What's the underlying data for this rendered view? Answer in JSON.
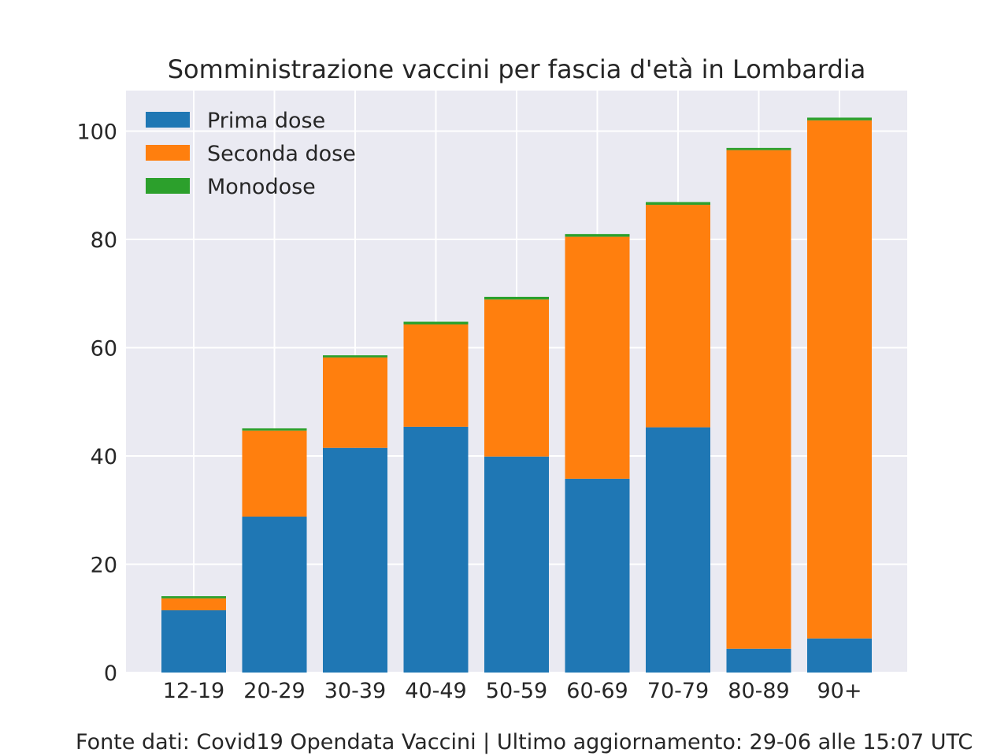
{
  "chart_data": {
    "type": "bar",
    "stacked": true,
    "title": "Somministrazione vaccini per fascia d'età in Lombardia",
    "xlabel": "",
    "ylabel": "",
    "categories": [
      "12-19",
      "20-29",
      "30-39",
      "40-49",
      "50-59",
      "60-69",
      "70-79",
      "80-89",
      "90+"
    ],
    "series": [
      {
        "name": "Prima dose",
        "color": "#1f77b4",
        "values": [
          11.5,
          28.8,
          41.5,
          45.4,
          39.9,
          35.8,
          45.3,
          4.4,
          6.3
        ]
      },
      {
        "name": "Seconda dose",
        "color": "#ff7f0e",
        "values": [
          2.2,
          15.9,
          16.7,
          18.9,
          29.0,
          44.7,
          41.1,
          92.1,
          95.7
        ]
      },
      {
        "name": "Monodose",
        "color": "#2ca02c",
        "values": [
          0.4,
          0.4,
          0.4,
          0.5,
          0.5,
          0.5,
          0.5,
          0.4,
          0.5
        ]
      }
    ],
    "ylim": [
      0,
      107.5
    ],
    "yticks": [
      0,
      20,
      40,
      60,
      80,
      100
    ],
    "grid": true,
    "legend_position": "top-left",
    "background_color": "#eaeaf2",
    "grid_color": "#ffffff"
  },
  "footer": {
    "text": "Fonte dati: Covid19 Opendata Vaccini | Ultimo aggiornamento: 29-06 alle 15:07 UTC"
  }
}
